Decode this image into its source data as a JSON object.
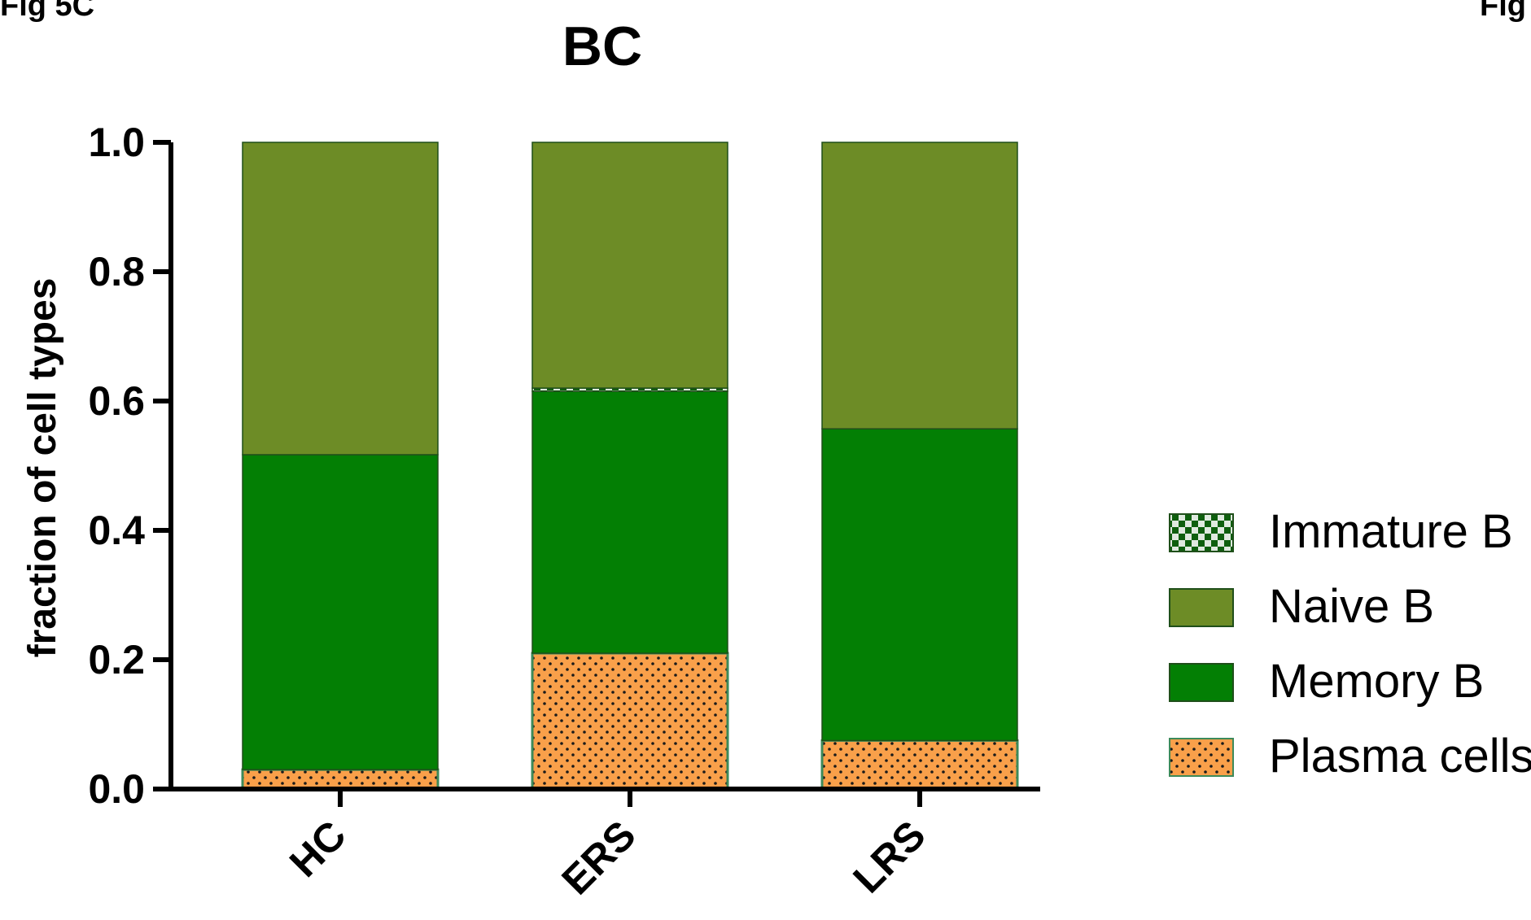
{
  "figure": {
    "label_left": "Fig 5C",
    "label_right": "Fig"
  },
  "chart_data": {
    "type": "bar",
    "stacked": true,
    "title": "BC",
    "xlabel": "",
    "ylabel": "fraction of cell types",
    "ylim": [
      0,
      1.0
    ],
    "yticks": [
      "0.0",
      "0.2",
      "0.4",
      "0.6",
      "0.8",
      "1.0"
    ],
    "categories": [
      "HC",
      "ERS",
      "LRS"
    ],
    "series": [
      {
        "name": "Plasma cells",
        "values": [
          0.03,
          0.21,
          0.075
        ],
        "color": "#f9a04a",
        "pattern": "dots"
      },
      {
        "name": "Memory B",
        "values": [
          0.487,
          0.405,
          0.482
        ],
        "color": "#037f04",
        "pattern": "solid"
      },
      {
        "name": "Immature B",
        "values": [
          0.0,
          0.005,
          0.0
        ],
        "color": "#0e5f0e",
        "pattern": "checker"
      },
      {
        "name": "Naive B",
        "values": [
          0.483,
          0.38,
          0.443
        ],
        "color": "#6d8c26",
        "pattern": "solid"
      }
    ],
    "legend_order": [
      "Immature B",
      "Naive B",
      "Memory B",
      "Plasma cells"
    ],
    "legend_position": "right",
    "grid": false
  }
}
